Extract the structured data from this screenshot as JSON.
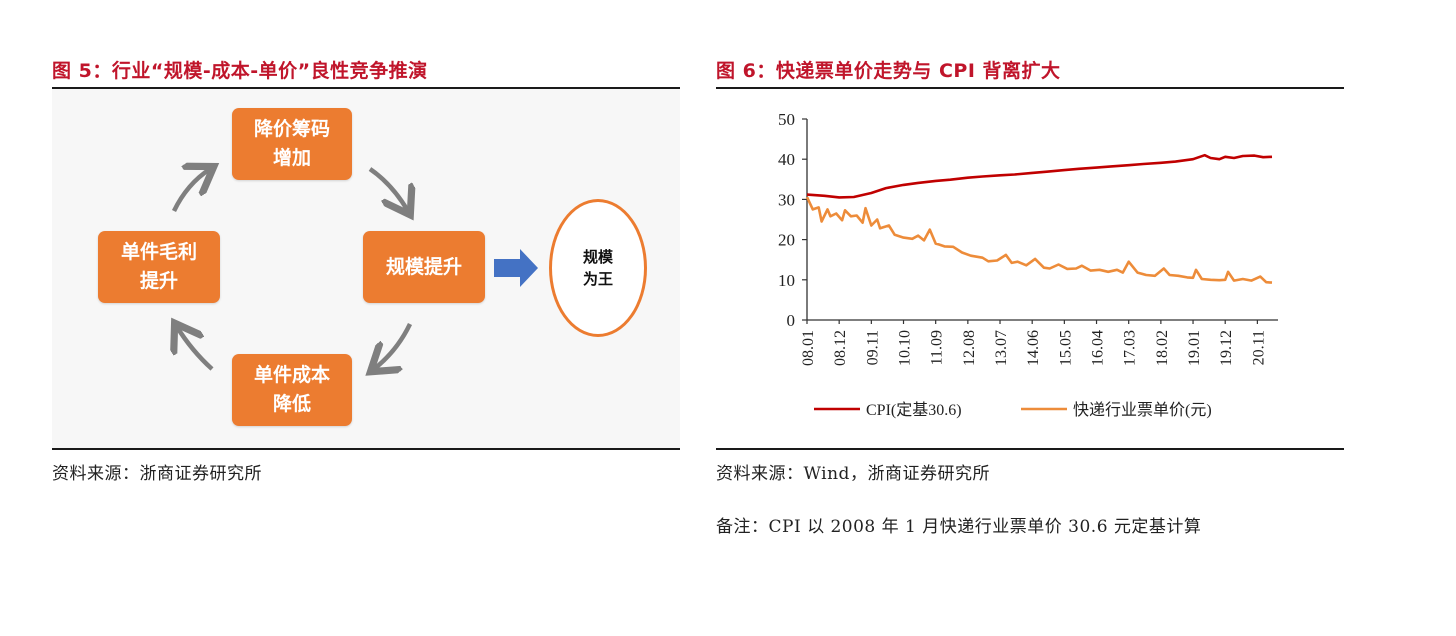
{
  "left_panel": {
    "title": "图 5：行业“规模-成本-单价”良性竞争推演",
    "boxes": {
      "top": [
        "降价筹码",
        "增加"
      ],
      "right": "规模提升",
      "bottom": [
        "单件成本",
        "降低"
      ],
      "left": [
        "单件毛利",
        "提升"
      ]
    },
    "result": [
      "规模",
      "为王"
    ],
    "source": "资料来源：浙商证券研究所",
    "colors": {
      "box": "#ec7c30",
      "cycle_arrow": "#7f7f7f",
      "block_arrow": "#4472c4",
      "title": "#c0152b"
    }
  },
  "right_panel": {
    "title": "图 6：快递票单价走势与 CPI 背离扩大",
    "source": "资料来源：Wind，浙商证券研究所",
    "note": "备注：CPI 以 2008 年 1 月快递行业票单价 30.6 元定基计算"
  },
  "chart_data": {
    "type": "line",
    "title": "快递票单价走势与 CPI 背离扩大",
    "xlabel": "",
    "ylabel": "",
    "ylim": [
      0,
      50
    ],
    "yticks": [
      0,
      10,
      20,
      30,
      40,
      50
    ],
    "xticks": [
      "08.01",
      "08.12",
      "09.11",
      "10.10",
      "11.09",
      "12.08",
      "13.07",
      "14.06",
      "15.05",
      "16.04",
      "17.03",
      "18.02",
      "19.01",
      "19.12",
      "20.11"
    ],
    "legend_position": "bottom",
    "series": [
      {
        "name": "CPI(定基30.6)",
        "color": "#c00000",
        "x_months": [
          0,
          6,
          11,
          16,
          22,
          27,
          33,
          38,
          44,
          49,
          55,
          60,
          66,
          71,
          77,
          82,
          88,
          93,
          99,
          104,
          110,
          115,
          121,
          126,
          132,
          136,
          138,
          141,
          143,
          146,
          149,
          153,
          156,
          159
        ],
        "values": [
          31.2,
          30.9,
          30.5,
          30.6,
          31.6,
          32.8,
          33.6,
          34.1,
          34.6,
          34.9,
          35.4,
          35.7,
          36.0,
          36.2,
          36.6,
          36.9,
          37.3,
          37.6,
          37.9,
          38.2,
          38.5,
          38.8,
          39.1,
          39.4,
          40.0,
          41.0,
          40.3,
          40.0,
          40.6,
          40.3,
          40.8,
          40.9,
          40.5,
          40.6
        ]
      },
      {
        "name": "快递行业票单价(元)",
        "color": "#ed8c3a",
        "x_months": [
          0,
          2,
          4,
          5,
          7,
          8,
          10,
          12,
          13,
          15,
          17,
          19,
          20,
          22,
          24,
          25,
          28,
          30,
          33,
          36,
          38,
          40,
          42,
          44,
          45,
          47,
          50,
          53,
          56,
          60,
          62,
          65,
          68,
          70,
          72,
          75,
          78,
          81,
          83,
          86,
          89,
          92,
          94,
          97,
          100,
          103,
          106,
          108,
          110,
          113,
          116,
          119,
          122,
          124,
          127,
          130,
          132,
          133,
          135,
          138,
          141,
          143,
          144,
          146,
          149,
          152,
          155,
          157,
          159
        ],
        "values": [
          30.6,
          27.5,
          28.0,
          24.5,
          27.5,
          25.8,
          26.5,
          24.8,
          27.3,
          25.8,
          26.0,
          24.2,
          27.8,
          23.5,
          25.0,
          22.8,
          23.5,
          21.2,
          20.5,
          20.2,
          21.0,
          19.8,
          22.5,
          19.0,
          18.8,
          18.3,
          18.2,
          16.8,
          16.0,
          15.5,
          14.6,
          14.8,
          16.2,
          14.2,
          14.5,
          13.6,
          15.2,
          13.0,
          12.8,
          13.8,
          12.7,
          12.8,
          13.5,
          12.3,
          12.5,
          12.0,
          12.5,
          11.8,
          14.5,
          11.8,
          11.2,
          11.0,
          12.8,
          11.2,
          11.0,
          10.6,
          10.5,
          12.5,
          10.2,
          10.0,
          9.9,
          10.0,
          12.0,
          9.8,
          10.2,
          9.8,
          10.8,
          9.4,
          9.3
        ]
      }
    ]
  }
}
